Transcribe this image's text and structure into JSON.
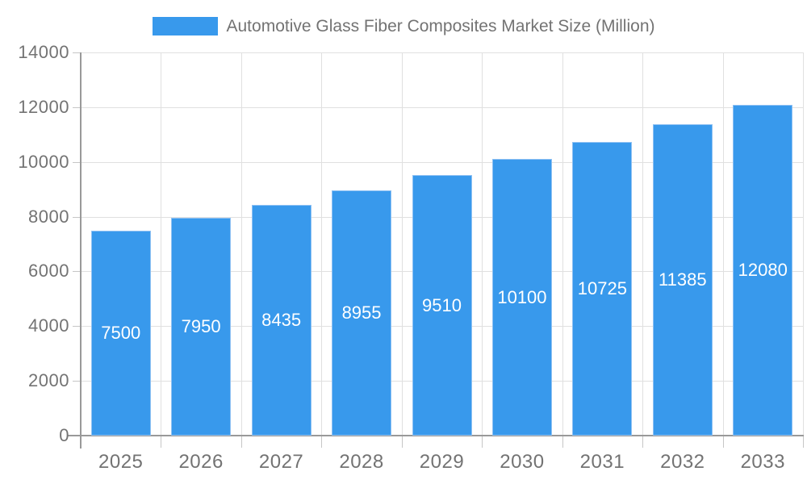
{
  "legend": {
    "series_label": "Automotive Glass Fiber Composites Market Size (Million)"
  },
  "colors": {
    "bar": "#3899EC",
    "bar_border": "#8FC1F3",
    "axis_line": "#999999",
    "gridline": "#E0E0E0",
    "tick_mark": "#C6C6C6",
    "axis_text": "#737373",
    "value_label_text": "#FFFFFF",
    "background": "#FFFFFF"
  },
  "chart_data": {
    "type": "bar",
    "title": "Automotive Glass Fiber Composites Market Size (Million)",
    "categories": [
      "2025",
      "2026",
      "2027",
      "2028",
      "2029",
      "2030",
      "2031",
      "2032",
      "2033"
    ],
    "values": [
      7500,
      7950,
      8435,
      8955,
      9510,
      10100,
      10725,
      11385,
      12080
    ],
    "value_labels_position": "inside-center",
    "xlabel": "",
    "ylabel": "",
    "ylim": [
      0,
      14000
    ],
    "y_ticks": [
      0,
      2000,
      4000,
      6000,
      8000,
      10000,
      12000,
      14000
    ],
    "grid": true,
    "legend_position": "top-center"
  }
}
